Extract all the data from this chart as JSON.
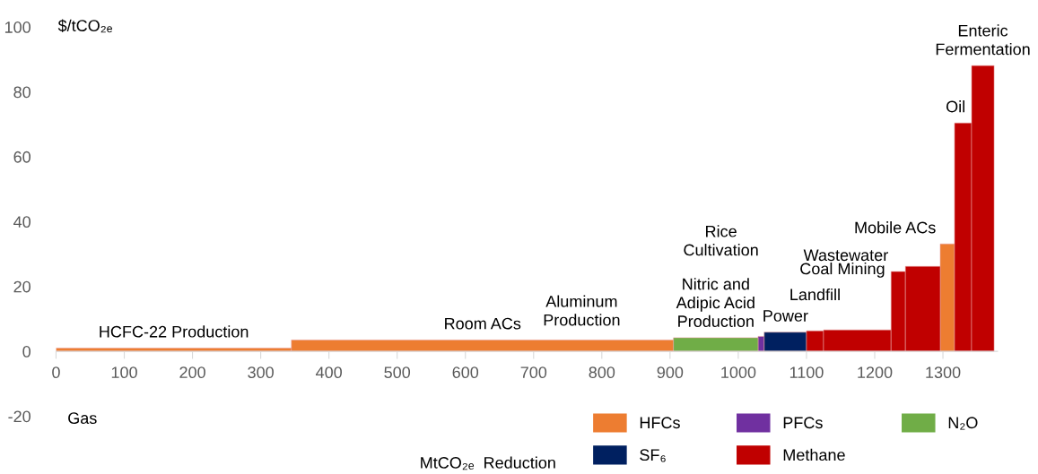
{
  "chart_data": {
    "type": "histogram",
    "xlabel": "MtCO₂ₑ  Reduction",
    "ylabel": "$/tCO₂ₑ",
    "legend_title": "Gas",
    "bins": [
      0,
      345,
      905,
      1029,
      1038,
      1100,
      1125,
      1224,
      1245,
      1296,
      1317,
      1342,
      1375
    ],
    "series": [
      {
        "name": "HFCs",
        "color": "#ed7d31",
        "values": [
          1,
          3.5,
          null,
          null,
          null,
          null,
          null,
          null,
          null,
          33.1,
          null,
          null
        ]
      },
      {
        "name": "PFCs",
        "color": "#7030a0",
        "values": [
          null,
          null,
          null,
          4.6,
          null,
          null,
          null,
          null,
          null,
          null,
          null,
          null
        ]
      },
      {
        "name": "SF₆",
        "color": "#002060",
        "values": [
          null,
          null,
          null,
          null,
          5.9,
          null,
          null,
          null,
          null,
          null,
          null,
          null
        ]
      },
      {
        "name": "Methane",
        "color": "#c00000",
        "values": [
          null,
          null,
          null,
          null,
          null,
          6.3,
          6.6,
          24.6,
          26.2,
          null,
          70.4,
          88.1
        ]
      },
      {
        "name": "N₂O",
        "color": "#70ad47",
        "values": [
          null,
          null,
          4.2,
          null,
          null,
          null,
          null,
          null,
          null,
          null,
          null,
          null
        ]
      }
    ],
    "annotations": [
      "HCFC-22 Production",
      "Room ACs",
      "Nitric and\nAdipic Acid\nProduction",
      "Aluminum\nProduction",
      "Power",
      "Landfill",
      "Coal Mining",
      "Wastewater",
      "Rice\nCultivation",
      "Mobile ACs",
      "Oil",
      "Enteric\nFermentation"
    ],
    "xlim": [
      0,
      1380
    ],
    "xticks": [
      0,
      100,
      200,
      300,
      400,
      500,
      600,
      700,
      800,
      900,
      1000,
      1100,
      1200,
      1300
    ],
    "ylim": [
      -20,
      100
    ],
    "yticks": [
      -20,
      0,
      20,
      40,
      60,
      80,
      100
    ],
    "grid": false,
    "legend": "bottom right"
  }
}
